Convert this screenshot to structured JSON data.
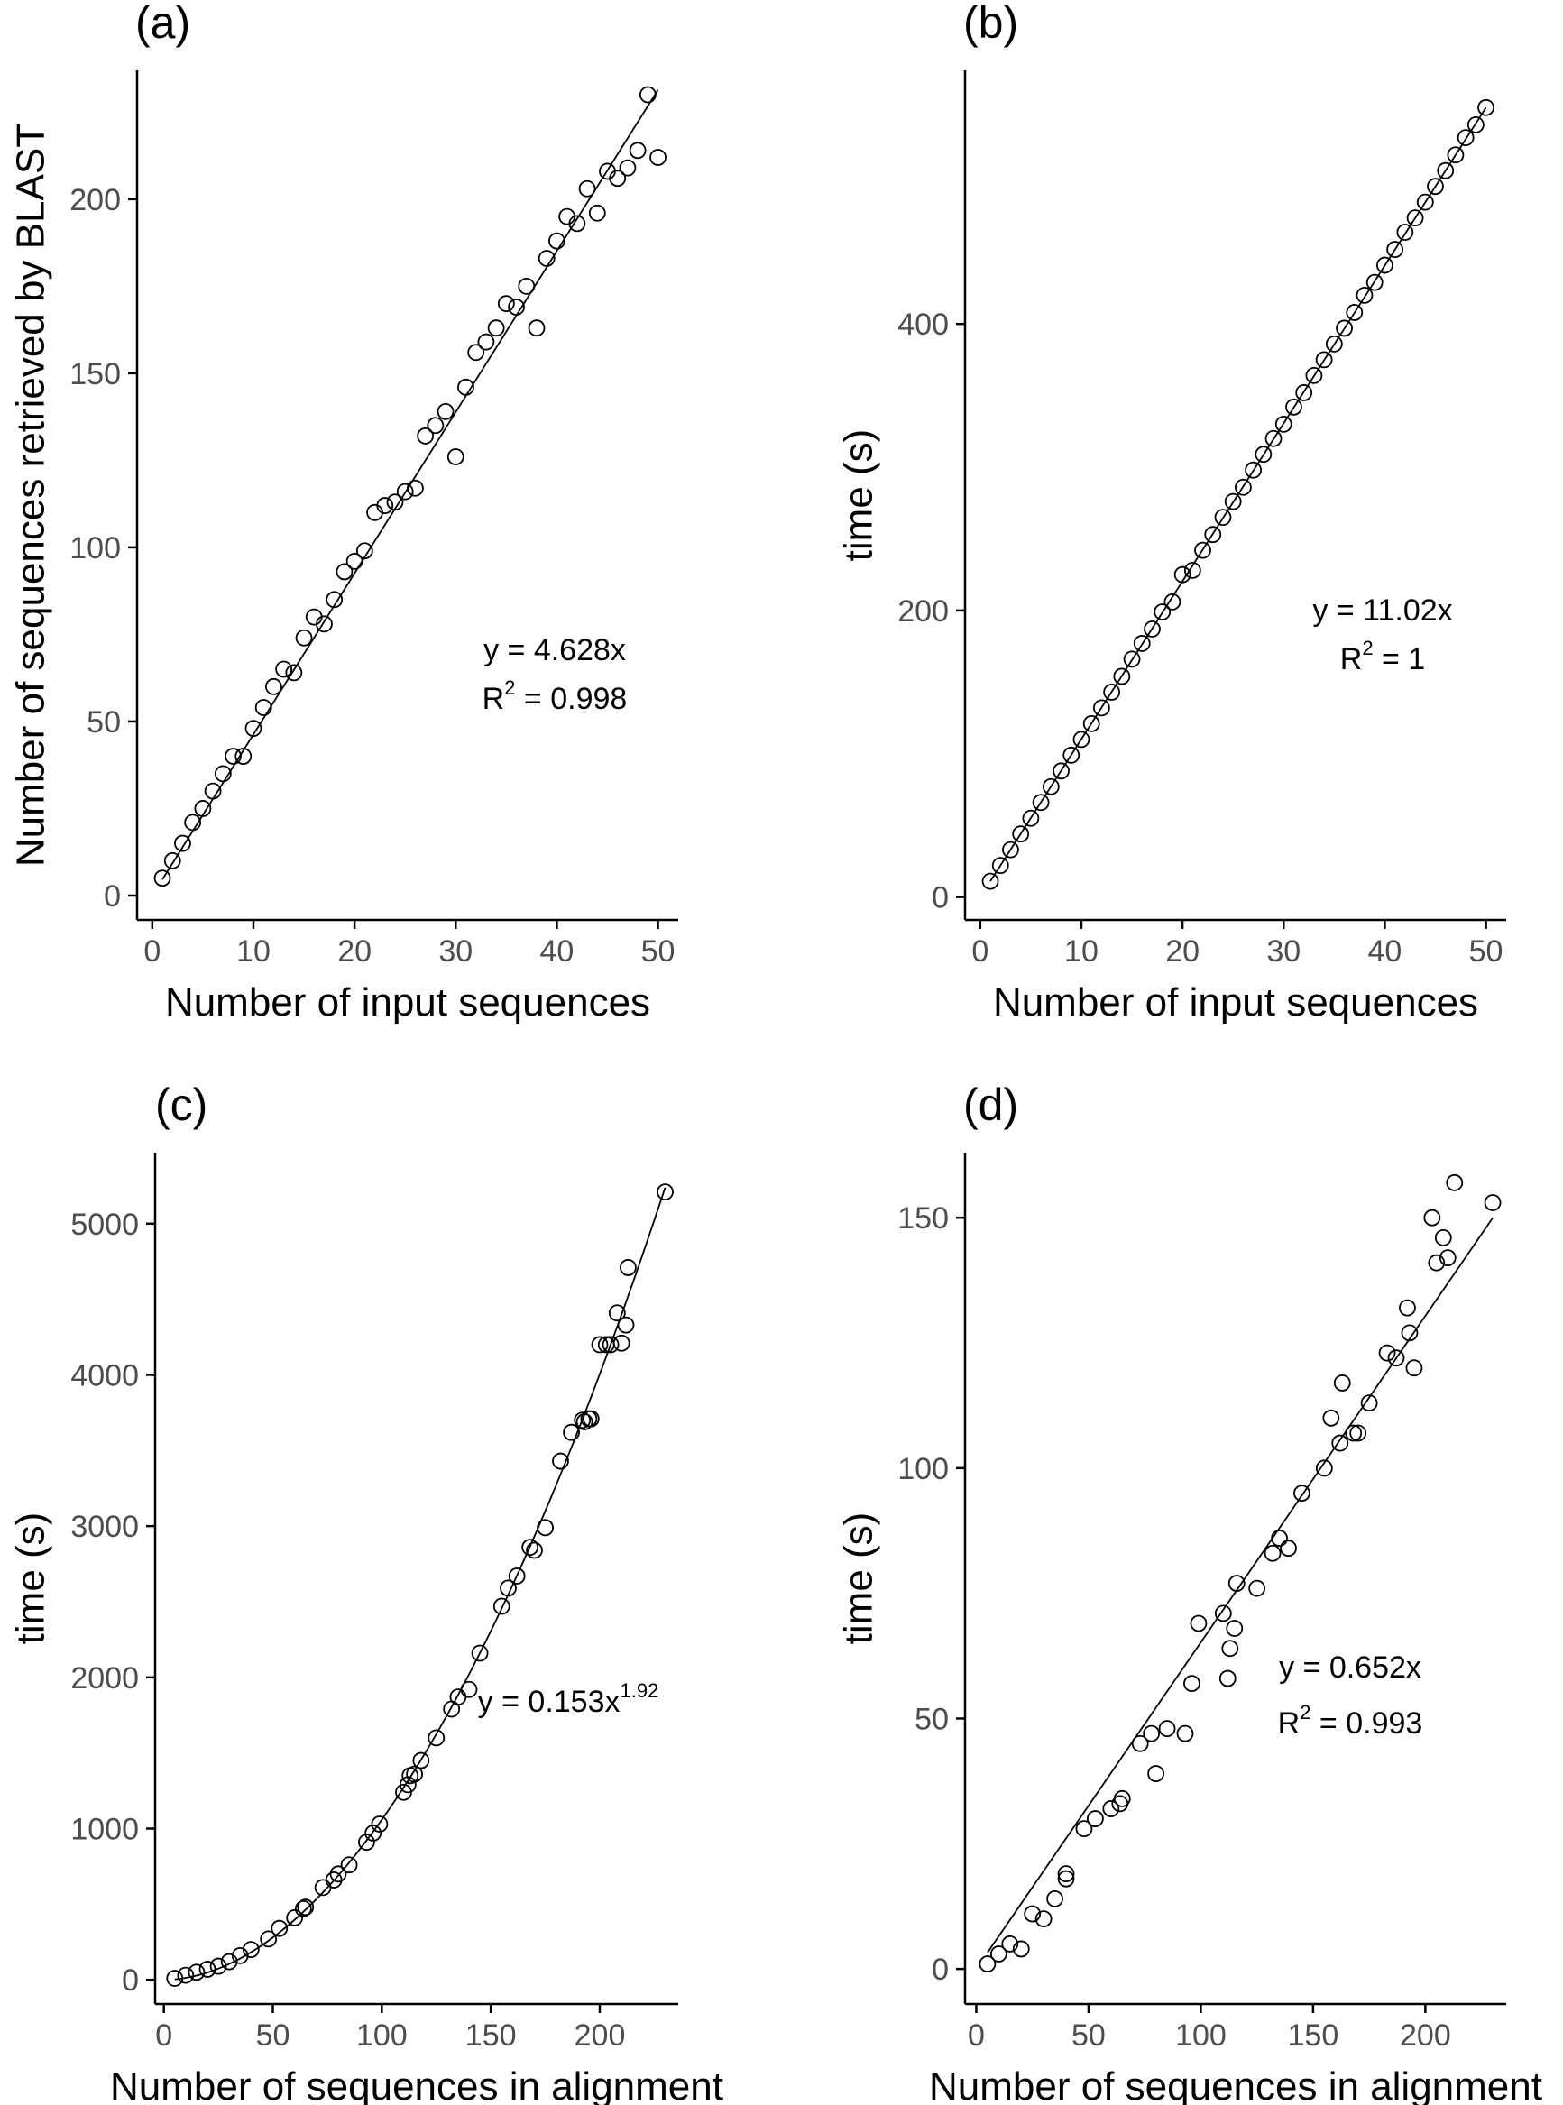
{
  "chart_data": [
    {
      "type": "scatter",
      "panel_label": "(a)",
      "xlabel": "Number of input sequences",
      "ylabel": "Number of sequences retrieved by BLAST",
      "xlim": [
        -1.5,
        52
      ],
      "ylim": [
        -7,
        237
      ],
      "xticks": [
        0,
        10,
        20,
        30,
        40,
        50
      ],
      "yticks": [
        0,
        50,
        100,
        150,
        200
      ],
      "grid": false,
      "fit": {
        "type": "linear",
        "slope": 4.628,
        "x_range": [
          1,
          50
        ]
      },
      "annotation": {
        "line1": "y = 4.628x",
        "r2_prefix": "R",
        "r2_sup": "2",
        "r2_value": " = 0.998"
      },
      "x": [
        1,
        2,
        3,
        4,
        5,
        6,
        7,
        8,
        9,
        10,
        11,
        12,
        13,
        14,
        15,
        16,
        17,
        18,
        19,
        20,
        21,
        22,
        23,
        24,
        25,
        26,
        27,
        28,
        29,
        30,
        31,
        32,
        33,
        34,
        35,
        36,
        37,
        38,
        39,
        40,
        41,
        42,
        43,
        44,
        45,
        46,
        47,
        48,
        49,
        50
      ],
      "y": [
        5,
        10,
        15,
        21,
        25,
        30,
        35,
        40,
        40,
        48,
        54,
        60,
        65,
        64,
        74,
        80,
        78,
        85,
        93,
        96,
        99,
        110,
        112,
        113,
        116,
        117,
        132,
        135,
        139,
        126,
        146,
        156,
        159,
        163,
        170,
        169,
        175,
        163,
        183,
        188,
        195,
        193,
        203,
        196,
        208,
        206,
        209,
        214,
        230,
        212
      ]
    },
    {
      "type": "scatter",
      "panel_label": "(b)",
      "xlabel": "Number of input sequences",
      "ylabel": "time (s)",
      "xlim": [
        -1.5,
        52
      ],
      "ylim": [
        -16,
        577
      ],
      "xticks": [
        0,
        10,
        20,
        30,
        40,
        50
      ],
      "yticks": [
        0,
        200,
        400
      ],
      "grid": false,
      "fit": {
        "type": "linear",
        "slope": 11.02,
        "x_range": [
          1,
          50
        ]
      },
      "annotation": {
        "line1": "y = 11.02x",
        "r2_prefix": "R",
        "r2_sup": "2",
        "r2_value": " = 1"
      },
      "x": [
        1,
        2,
        3,
        4,
        5,
        6,
        7,
        8,
        9,
        10,
        11,
        12,
        13,
        14,
        15,
        16,
        17,
        18,
        19,
        20,
        21,
        22,
        23,
        24,
        25,
        26,
        27,
        28,
        29,
        30,
        31,
        32,
        33,
        34,
        35,
        36,
        37,
        38,
        39,
        40,
        41,
        42,
        43,
        44,
        45,
        46,
        47,
        48,
        49,
        50
      ],
      "y": [
        11,
        22,
        33,
        44,
        55,
        66,
        77,
        88,
        99,
        110,
        121,
        132,
        143,
        154,
        166,
        177,
        187,
        199,
        206,
        225,
        228,
        242,
        253,
        265,
        276,
        286,
        298,
        309,
        320,
        330,
        342,
        352,
        364,
        375,
        386,
        397,
        408,
        420,
        429,
        441,
        452,
        464,
        474,
        485,
        496,
        507,
        518,
        530,
        539,
        551
      ]
    },
    {
      "type": "scatter",
      "panel_label": "(c)",
      "xlabel": "Number of sequences in alignment",
      "ylabel": "time (s)",
      "xlim": [
        -4,
        236
      ],
      "ylim": [
        -160,
        5470
      ],
      "xticks": [
        0,
        50,
        100,
        150,
        200
      ],
      "yticks": [
        0,
        1000,
        2000,
        3000,
        4000,
        5000
      ],
      "grid": false,
      "fit": {
        "type": "power",
        "coef": 0.153,
        "exponent": 1.92,
        "x_range": [
          5,
          230
        ]
      },
      "annotation": {
        "line1_prefix": "y = 0.153x",
        "line1_sup": "1.92"
      },
      "x": [
        5,
        10,
        15,
        20,
        25,
        30,
        35,
        40,
        48,
        53,
        60,
        64,
        65,
        73,
        78,
        80,
        85,
        93,
        96,
        99,
        110,
        112,
        113,
        115,
        118,
        125,
        132,
        135,
        140,
        145,
        155,
        158,
        162,
        168,
        170,
        175,
        182,
        187,
        192,
        193,
        195,
        196,
        200,
        203,
        205,
        208,
        210,
        212,
        213,
        230
      ],
      "y": [
        10,
        30,
        50,
        70,
        90,
        120,
        160,
        200,
        270,
        340,
        410,
        470,
        480,
        610,
        660,
        700,
        760,
        910,
        970,
        1030,
        1240,
        1290,
        1350,
        1360,
        1450,
        1600,
        1790,
        1870,
        1920,
        2160,
        2470,
        2590,
        2670,
        2860,
        2840,
        2990,
        3430,
        3620,
        3700,
        3690,
        3710,
        3710,
        4200,
        4200,
        4200,
        4410,
        4210,
        4330,
        4710,
        5210
      ]
    },
    {
      "type": "scatter",
      "panel_label": "(d)",
      "xlabel": "Number of sequences in alignment",
      "ylabel": "time (s)",
      "xlim": [
        -5,
        236
      ],
      "ylim": [
        -7,
        163
      ],
      "xticks": [
        0,
        50,
        100,
        150,
        200
      ],
      "yticks": [
        0,
        50,
        100,
        150
      ],
      "grid": false,
      "fit": {
        "type": "linear",
        "slope": 0.652,
        "x_range": [
          5,
          230
        ]
      },
      "annotation": {
        "line1": "y = 0.652x",
        "r2_prefix": "R",
        "r2_sup": "2",
        "r2_value": " = 0.993"
      },
      "x": [
        5,
        10,
        15,
        20,
        25,
        30,
        35,
        40,
        40,
        48,
        53,
        60,
        64,
        65,
        73,
        78,
        80,
        85,
        93,
        96,
        99,
        110,
        112,
        113,
        115,
        116,
        125,
        132,
        135,
        139,
        145,
        155,
        158,
        162,
        163,
        168,
        170,
        175,
        183,
        187,
        192,
        193,
        195,
        203,
        205,
        208,
        210,
        213,
        230
      ],
      "y": [
        1,
        3,
        5,
        4,
        11,
        10,
        14,
        18,
        19,
        28,
        30,
        32,
        33,
        34,
        45,
        47,
        39,
        48,
        47,
        57,
        69,
        71,
        58,
        64,
        68,
        77,
        76,
        83,
        86,
        84,
        95,
        100,
        110,
        105,
        117,
        107,
        107,
        113,
        123,
        122,
        132,
        127,
        120,
        150,
        141,
        146,
        142,
        157,
        153
      ]
    }
  ]
}
